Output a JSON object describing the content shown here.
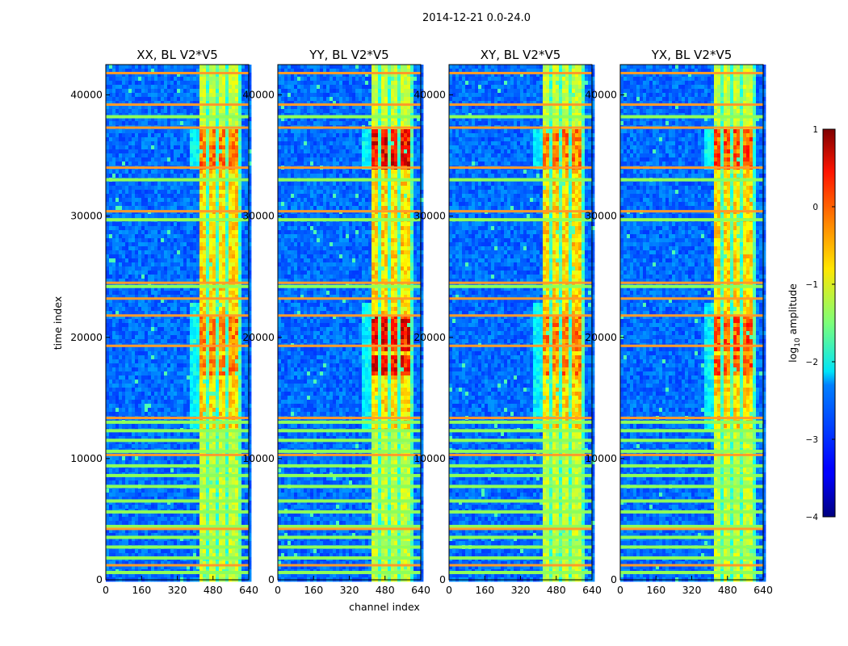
{
  "chart_data": {
    "type": "heatmap",
    "suptitle": "2014-12-21 0.0-24.0",
    "xlabel": "channel index",
    "ylabel": "time index",
    "xlim": [
      0,
      640
    ],
    "ylim": [
      0,
      42500
    ],
    "xticks": [
      "0",
      "160",
      "320",
      "480",
      "640"
    ],
    "yticks": [
      "0",
      "10000",
      "20000",
      "30000",
      "40000"
    ],
    "colorbar": {
      "label": "log",
      "label_sub": "10",
      "label_rest": " amplitude",
      "range": [
        -4,
        1
      ],
      "ticks": [
        "1",
        "0",
        "−1",
        "−2",
        "−3",
        "−4"
      ],
      "colormap": "jet"
    },
    "panels": [
      {
        "title": "XX, BL V2*V5",
        "band_strength": 0.85
      },
      {
        "title": "YY, BL V2*V5",
        "band_strength": 1.0
      },
      {
        "title": "XY, BL V2*V5",
        "band_strength": 0.85
      },
      {
        "title": "YX, BL V2*V5",
        "band_strength": 0.9
      }
    ],
    "signal_channel_range": [
      405,
      595
    ],
    "signal_subbands": [
      [
        405,
        445
      ],
      [
        452,
        487
      ],
      [
        495,
        530
      ],
      [
        540,
        582
      ]
    ],
    "strong_time_ranges": [
      [
        34000,
        37200
      ],
      [
        19000,
        22000
      ],
      [
        17000,
        18800
      ]
    ],
    "flagged_rows_orange": [
      1200,
      4200,
      10300,
      13350,
      19300,
      21800,
      23200,
      24500,
      30400,
      34000,
      37300,
      39200,
      41800
    ],
    "flagged_rows_green": [
      600,
      1800,
      2700,
      3500,
      4400,
      5600,
      6500,
      7700,
      8600,
      9400,
      10600,
      11500,
      12300,
      13000,
      24200,
      29700,
      33000,
      38200
    ]
  }
}
